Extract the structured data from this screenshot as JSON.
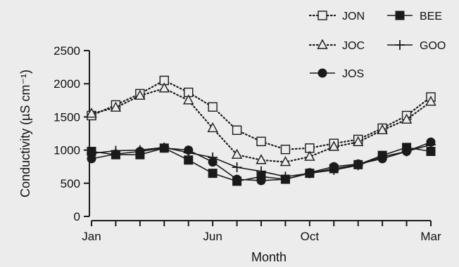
{
  "chart_data": {
    "type": "line",
    "xlabel": "Month",
    "ylabel": "Conductivity (µS cm⁻¹)",
    "x": [
      1,
      2,
      3,
      4,
      5,
      6,
      7,
      8,
      9,
      10,
      11,
      12,
      13,
      14,
      15
    ],
    "x_ticks": [
      {
        "x": 1,
        "label": "Jan"
      },
      {
        "x": 6,
        "label": "Jun"
      },
      {
        "x": 10,
        "label": "Oct"
      },
      {
        "x": 15,
        "label": "Mar"
      }
    ],
    "y_ticks": [
      0,
      500,
      1000,
      1500,
      2000,
      2500
    ],
    "xlim": [
      1,
      15
    ],
    "ylim": [
      0,
      2500
    ],
    "grid": false,
    "legend_position": "top-right",
    "series": [
      {
        "name": "JON",
        "marker": "open-square",
        "line": "dotted",
        "values": [
          1520,
          1680,
          1850,
          2050,
          1870,
          1650,
          1300,
          1130,
          1010,
          1030,
          1100,
          1160,
          1330,
          1520,
          1800
        ]
      },
      {
        "name": "JOC",
        "marker": "open-triangle",
        "line": "dotted",
        "values": [
          1550,
          1640,
          1820,
          1930,
          1750,
          1330,
          930,
          850,
          820,
          900,
          1050,
          1120,
          1300,
          1460,
          1730
        ]
      },
      {
        "name": "JOS",
        "marker": "filled-circle",
        "line": "solid",
        "values": [
          870,
          940,
          980,
          1030,
          1000,
          820,
          560,
          540,
          560,
          660,
          750,
          790,
          870,
          980,
          1120
        ]
      },
      {
        "name": "BEE",
        "marker": "filled-square",
        "line": "solid",
        "values": [
          980,
          930,
          930,
          1030,
          850,
          650,
          530,
          600,
          560,
          650,
          720,
          780,
          920,
          1040,
          980
        ]
      },
      {
        "name": "GOO",
        "marker": "plus",
        "line": "solid",
        "values": [
          950,
          990,
          1000,
          1040,
          960,
          890,
          740,
          680,
          600,
          650,
          700,
          770,
          900,
          980,
          1080
        ]
      }
    ]
  }
}
